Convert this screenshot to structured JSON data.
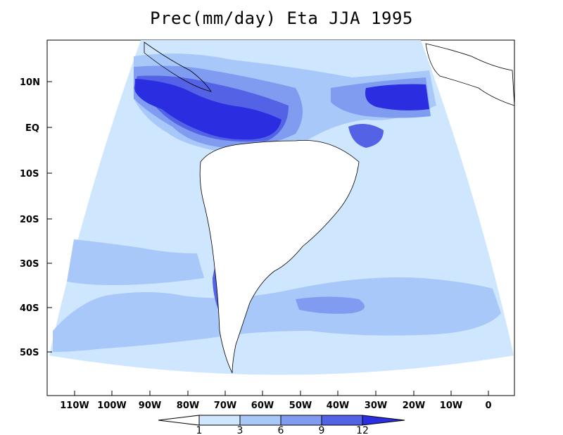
{
  "title": "Prec(mm/day) Eta JJA 1995",
  "colors": {
    "level_1_3": "#cfe6ff",
    "level_3_6": "#a8c8fa",
    "level_6_9": "#7f9cf0",
    "level_9_12": "#5463e6",
    "level_12_plus": "#2a2ee0",
    "land_below_1": "#ffffff",
    "coast": "#000000"
  },
  "lat_labels": [
    "10N",
    "EQ",
    "10S",
    "20S",
    "30S",
    "40S",
    "50S"
  ],
  "lon_labels": [
    "110W",
    "100W",
    "90W",
    "80W",
    "70W",
    "60W",
    "50W",
    "40W",
    "30W",
    "20W",
    "10W",
    "0"
  ],
  "colorbar": {
    "ticks": [
      "1",
      "3",
      "6",
      "9",
      "12"
    ],
    "colors": [
      "#ffffff",
      "#cfe6ff",
      "#a8c8fa",
      "#7f9cf0",
      "#5463e6",
      "#2a2ee0"
    ]
  }
}
